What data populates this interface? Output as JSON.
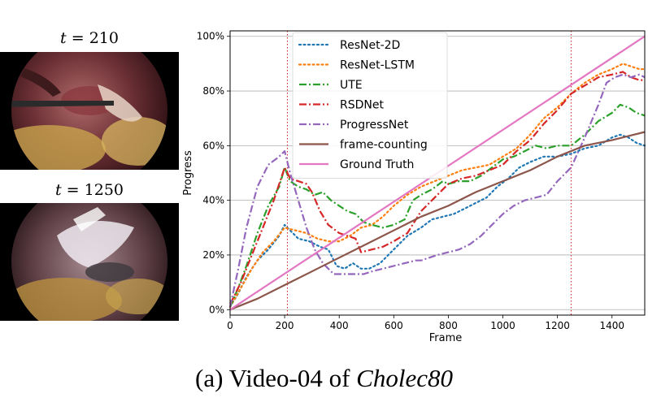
{
  "frames": [
    {
      "t_label": "t",
      "eq": " = ",
      "value": "210"
    },
    {
      "t_label": "t",
      "eq": " = ",
      "value": "1250"
    }
  ],
  "caption": {
    "prefix": "(a) Video-04 of ",
    "dataset": "Cholec80"
  },
  "colors": {
    "ResNet-2D": "#1f77b4",
    "ResNet-LSTM": "#ff7f0e",
    "UTE": "#2ca02c",
    "RSDNet": "#d62728",
    "ProgressNet": "#9467bd",
    "frame-counting": "#8c564b",
    "Ground Truth": "#e377c2",
    "markers": "#e41a1c"
  },
  "chart_data": {
    "type": "line",
    "xlabel": "Frame",
    "ylabel": "Progress",
    "xlim": [
      0,
      1520
    ],
    "ylim": [
      -2,
      102
    ],
    "xticks": [
      0,
      200,
      400,
      600,
      800,
      1000,
      1200,
      1400
    ],
    "yticks": [
      0,
      20,
      40,
      60,
      80,
      100
    ],
    "ytick_labels": [
      "0%",
      "20%",
      "40%",
      "60%",
      "80%",
      "100%"
    ],
    "grid": "y",
    "legend_position": "upper-left",
    "vlines": [
      210,
      1250
    ],
    "series": [
      {
        "name": "ResNet-2D",
        "style": "dotted",
        "points": [
          [
            0,
            1
          ],
          [
            30,
            6
          ],
          [
            60,
            12
          ],
          [
            100,
            18
          ],
          [
            140,
            22
          ],
          [
            180,
            27
          ],
          [
            200,
            31
          ],
          [
            220,
            29
          ],
          [
            250,
            26
          ],
          [
            290,
            25
          ],
          [
            330,
            23
          ],
          [
            360,
            22
          ],
          [
            390,
            16
          ],
          [
            420,
            15
          ],
          [
            450,
            17
          ],
          [
            480,
            15
          ],
          [
            510,
            15
          ],
          [
            550,
            17
          ],
          [
            600,
            22
          ],
          [
            650,
            27
          ],
          [
            700,
            30
          ],
          [
            740,
            33
          ],
          [
            780,
            34
          ],
          [
            820,
            35
          ],
          [
            860,
            37
          ],
          [
            900,
            39
          ],
          [
            940,
            41
          ],
          [
            980,
            45
          ],
          [
            1020,
            48
          ],
          [
            1060,
            52
          ],
          [
            1100,
            54
          ],
          [
            1150,
            56
          ],
          [
            1200,
            56
          ],
          [
            1250,
            57
          ],
          [
            1300,
            59
          ],
          [
            1350,
            60
          ],
          [
            1400,
            63
          ],
          [
            1430,
            64
          ],
          [
            1460,
            63
          ],
          [
            1490,
            61
          ],
          [
            1520,
            60
          ]
        ]
      },
      {
        "name": "ResNet-LSTM",
        "style": "dotted",
        "points": [
          [
            0,
            1
          ],
          [
            40,
            8
          ],
          [
            80,
            15
          ],
          [
            120,
            21
          ],
          [
            160,
            25
          ],
          [
            200,
            30
          ],
          [
            240,
            29
          ],
          [
            280,
            28
          ],
          [
            320,
            26
          ],
          [
            360,
            25
          ],
          [
            400,
            25
          ],
          [
            440,
            27
          ],
          [
            480,
            30
          ],
          [
            520,
            31
          ],
          [
            560,
            34
          ],
          [
            600,
            38
          ],
          [
            650,
            42
          ],
          [
            700,
            45
          ],
          [
            750,
            47
          ],
          [
            800,
            49
          ],
          [
            850,
            51
          ],
          [
            900,
            52
          ],
          [
            950,
            53
          ],
          [
            1000,
            56
          ],
          [
            1050,
            59
          ],
          [
            1100,
            64
          ],
          [
            1150,
            70
          ],
          [
            1200,
            74
          ],
          [
            1250,
            79
          ],
          [
            1300,
            83
          ],
          [
            1350,
            86
          ],
          [
            1400,
            88
          ],
          [
            1440,
            90
          ],
          [
            1470,
            89
          ],
          [
            1500,
            88
          ],
          [
            1520,
            88
          ]
        ]
      },
      {
        "name": "UTE",
        "style": "dashdot",
        "points": [
          [
            0,
            1
          ],
          [
            30,
            8
          ],
          [
            60,
            16
          ],
          [
            100,
            28
          ],
          [
            140,
            38
          ],
          [
            180,
            45
          ],
          [
            200,
            52
          ],
          [
            220,
            47
          ],
          [
            250,
            45
          ],
          [
            280,
            44
          ],
          [
            310,
            42
          ],
          [
            340,
            43
          ],
          [
            370,
            40
          ],
          [
            400,
            38
          ],
          [
            430,
            36
          ],
          [
            460,
            35
          ],
          [
            490,
            32
          ],
          [
            520,
            31
          ],
          [
            560,
            30
          ],
          [
            600,
            31
          ],
          [
            640,
            33
          ],
          [
            670,
            40
          ],
          [
            700,
            42
          ],
          [
            740,
            44
          ],
          [
            780,
            47
          ],
          [
            800,
            46
          ],
          [
            840,
            47
          ],
          [
            880,
            47
          ],
          [
            920,
            49
          ],
          [
            960,
            52
          ],
          [
            1000,
            55
          ],
          [
            1040,
            56
          ],
          [
            1080,
            58
          ],
          [
            1120,
            60
          ],
          [
            1160,
            59
          ],
          [
            1200,
            60
          ],
          [
            1250,
            60
          ],
          [
            1300,
            64
          ],
          [
            1350,
            69
          ],
          [
            1400,
            72
          ],
          [
            1430,
            75
          ],
          [
            1460,
            74
          ],
          [
            1490,
            72
          ],
          [
            1520,
            71
          ]
        ]
      },
      {
        "name": "RSDNet",
        "style": "dashdot",
        "points": [
          [
            0,
            2
          ],
          [
            40,
            10
          ],
          [
            80,
            20
          ],
          [
            120,
            30
          ],
          [
            160,
            40
          ],
          [
            200,
            52
          ],
          [
            220,
            48
          ],
          [
            250,
            47
          ],
          [
            280,
            46
          ],
          [
            300,
            43
          ],
          [
            330,
            36
          ],
          [
            360,
            31
          ],
          [
            400,
            28
          ],
          [
            430,
            27
          ],
          [
            460,
            26
          ],
          [
            480,
            21
          ],
          [
            520,
            22
          ],
          [
            560,
            23
          ],
          [
            600,
            25
          ],
          [
            650,
            28
          ],
          [
            700,
            36
          ],
          [
            750,
            41
          ],
          [
            800,
            46
          ],
          [
            850,
            48
          ],
          [
            900,
            49
          ],
          [
            950,
            51
          ],
          [
            1000,
            53
          ],
          [
            1050,
            58
          ],
          [
            1100,
            62
          ],
          [
            1150,
            68
          ],
          [
            1200,
            73
          ],
          [
            1250,
            79
          ],
          [
            1300,
            82
          ],
          [
            1350,
            85
          ],
          [
            1400,
            86
          ],
          [
            1440,
            87
          ],
          [
            1470,
            85
          ],
          [
            1500,
            84
          ],
          [
            1520,
            84
          ]
        ]
      },
      {
        "name": "ProgressNet",
        "style": "dashdot",
        "points": [
          [
            0,
            1
          ],
          [
            30,
            15
          ],
          [
            60,
            30
          ],
          [
            100,
            45
          ],
          [
            140,
            53
          ],
          [
            180,
            56
          ],
          [
            200,
            58
          ],
          [
            220,
            50
          ],
          [
            250,
            40
          ],
          [
            280,
            30
          ],
          [
            310,
            22
          ],
          [
            340,
            17
          ],
          [
            360,
            15
          ],
          [
            380,
            13
          ],
          [
            400,
            13
          ],
          [
            430,
            13
          ],
          [
            460,
            13
          ],
          [
            490,
            13
          ],
          [
            520,
            14
          ],
          [
            560,
            15
          ],
          [
            600,
            16
          ],
          [
            640,
            17
          ],
          [
            680,
            18
          ],
          [
            700,
            18
          ],
          [
            730,
            19
          ],
          [
            760,
            20
          ],
          [
            800,
            21
          ],
          [
            840,
            22
          ],
          [
            880,
            24
          ],
          [
            920,
            27
          ],
          [
            960,
            31
          ],
          [
            1000,
            35
          ],
          [
            1040,
            38
          ],
          [
            1080,
            40
          ],
          [
            1120,
            41
          ],
          [
            1160,
            42
          ],
          [
            1200,
            47
          ],
          [
            1250,
            52
          ],
          [
            1300,
            63
          ],
          [
            1350,
            75
          ],
          [
            1380,
            83
          ],
          [
            1410,
            85
          ],
          [
            1440,
            86
          ],
          [
            1470,
            85
          ],
          [
            1500,
            86
          ],
          [
            1520,
            85
          ]
        ]
      },
      {
        "name": "frame-counting",
        "style": "solid",
        "points": [
          [
            0,
            0
          ],
          [
            100,
            4
          ],
          [
            200,
            9
          ],
          [
            300,
            14
          ],
          [
            400,
            19
          ],
          [
            500,
            24
          ],
          [
            600,
            29
          ],
          [
            700,
            34
          ],
          [
            800,
            38
          ],
          [
            900,
            43
          ],
          [
            1000,
            47
          ],
          [
            1100,
            51
          ],
          [
            1200,
            56
          ],
          [
            1300,
            60
          ],
          [
            1400,
            62
          ],
          [
            1520,
            65
          ]
        ]
      },
      {
        "name": "Ground Truth",
        "style": "solid",
        "points": [
          [
            0,
            0
          ],
          [
            1520,
            100
          ]
        ]
      }
    ]
  }
}
